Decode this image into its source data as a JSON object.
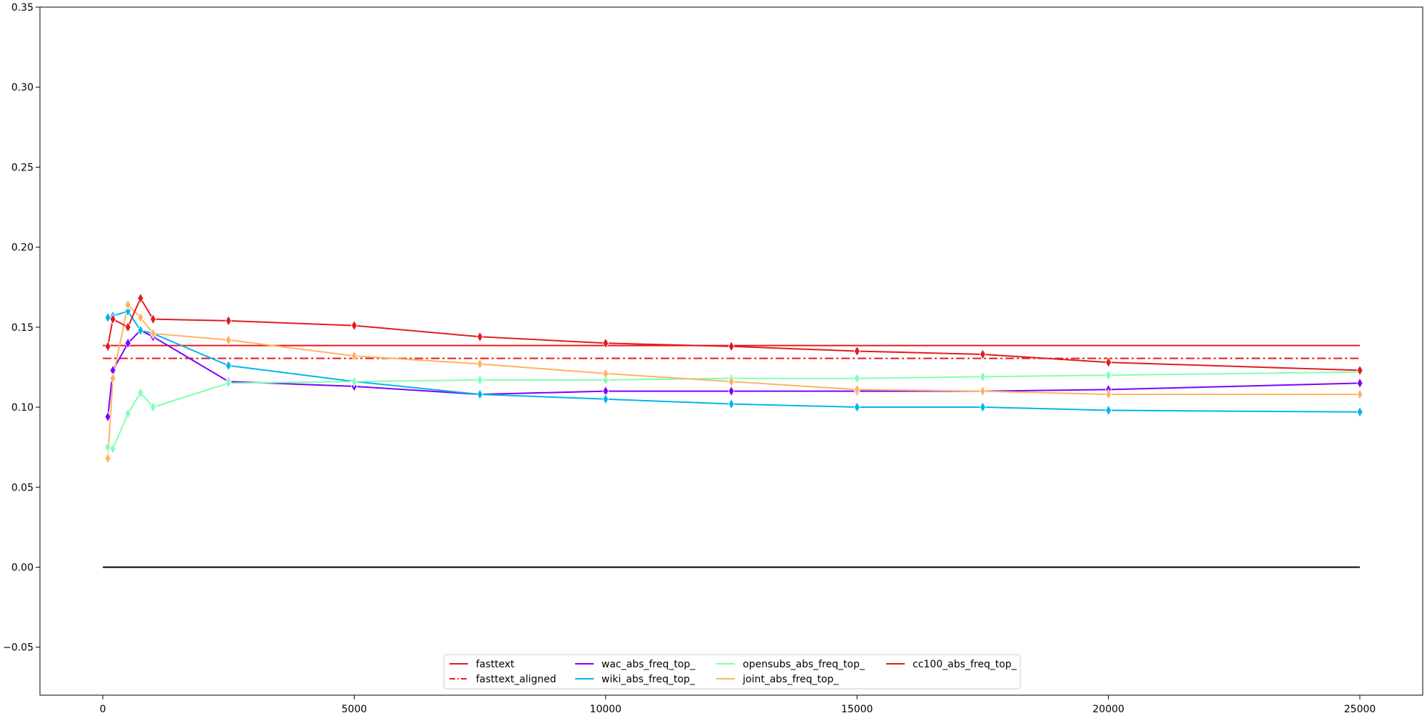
{
  "chart_data": {
    "type": "line",
    "title": "",
    "xlabel": "",
    "ylabel": "",
    "xlim": [
      -1250,
      26250
    ],
    "ylim": [
      -0.08,
      0.35
    ],
    "x_ticks": [
      0,
      5000,
      10000,
      15000,
      20000,
      25000
    ],
    "x_tick_labels": [
      "0",
      "5000",
      "10000",
      "15000",
      "20000",
      "25000"
    ],
    "y_ticks": [
      -0.05,
      0.0,
      0.05,
      0.1,
      0.15,
      0.2,
      0.25,
      0.3,
      0.35
    ],
    "y_tick_labels": [
      "−0.05",
      "0.00",
      "0.05",
      "0.10",
      "0.15",
      "0.20",
      "0.25",
      "0.30",
      "0.35"
    ],
    "grid": false,
    "legend_position": "lower-center",
    "legend_columns": 4,
    "x": [
      100,
      200,
      500,
      750,
      1000,
      2500,
      5000,
      7500,
      10000,
      12500,
      15000,
      17500,
      20000,
      25000
    ],
    "reference_lines": [
      {
        "name": "fasttext",
        "y": 0.1385,
        "x_range": [
          0,
          25000
        ],
        "color": "#e41a1c",
        "style": "solid"
      },
      {
        "name": "fasttext_aligned",
        "y": 0.1305,
        "x_range": [
          0,
          25000
        ],
        "color": "#e41a1c",
        "style": "dashdot"
      },
      {
        "name": "",
        "y": 0.0,
        "x_range": [
          0,
          25000
        ],
        "color": "#000000",
        "style": "solid"
      }
    ],
    "series": [
      {
        "name": "wac_abs_freq_top_",
        "color": "#8000ff",
        "values": [
          0.094,
          0.123,
          0.14,
          0.148,
          0.144,
          0.116,
          0.113,
          0.108,
          0.11,
          0.11,
          0.11,
          0.11,
          0.111,
          0.115
        ]
      },
      {
        "name": "wiki_abs_freq_top_",
        "color": "#00b5eb",
        "values": [
          0.156,
          0.157,
          0.16,
          0.148,
          0.146,
          0.126,
          0.116,
          0.108,
          0.105,
          0.102,
          0.1,
          0.1,
          0.098,
          0.097
        ]
      },
      {
        "name": "opensubs_abs_freq_top_",
        "color": "#80ffb4",
        "values": [
          0.075,
          0.074,
          0.096,
          0.109,
          0.1,
          0.115,
          0.116,
          0.117,
          0.117,
          0.118,
          0.118,
          0.119,
          0.12,
          0.122
        ]
      },
      {
        "name": "joint_abs_freq_top_",
        "color": "#ffb360",
        "values": [
          0.068,
          0.118,
          0.164,
          0.156,
          0.146,
          0.142,
          0.132,
          0.127,
          0.121,
          0.116,
          0.111,
          0.11,
          0.108,
          0.108
        ]
      },
      {
        "name": "cc100_abs_freq_top_",
        "color": "#e41a1c",
        "values": [
          0.138,
          0.155,
          0.15,
          0.168,
          0.155,
          0.154,
          0.151,
          0.144,
          0.14,
          0.138,
          0.135,
          0.133,
          0.128,
          0.123
        ]
      }
    ],
    "legend_entries": [
      {
        "name": "fasttext",
        "color": "#e41a1c",
        "style": "solid"
      },
      {
        "name": "fasttext_aligned",
        "color": "#e41a1c",
        "style": "dashdot"
      },
      {
        "name": "wac_abs_freq_top_",
        "color": "#8000ff",
        "style": "solid"
      },
      {
        "name": "wiki_abs_freq_top_",
        "color": "#00b5eb",
        "style": "solid"
      },
      {
        "name": "opensubs_abs_freq_top_",
        "color": "#80ffb4",
        "style": "solid"
      },
      {
        "name": "joint_abs_freq_top_",
        "color": "#ffb360",
        "style": "solid"
      },
      {
        "name": "cc100_abs_freq_top_",
        "color": "#e41a1c",
        "style": "solid"
      }
    ]
  }
}
